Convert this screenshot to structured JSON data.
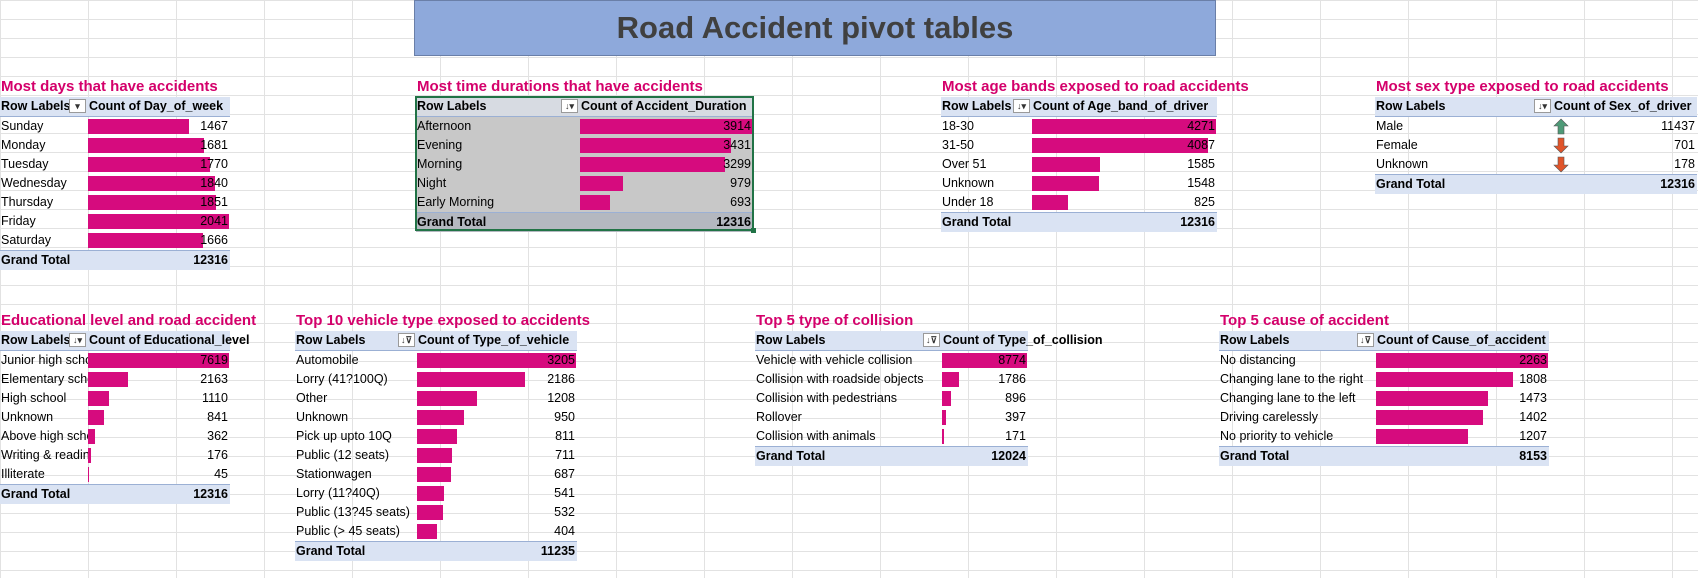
{
  "sheet_title": "Road Accident pivot tables",
  "colors": {
    "bar": "#d60b7e",
    "title": "#d4006b",
    "header": "#dae3f3",
    "banner": "#8ea9db",
    "arrow_up": "#4e9a77",
    "arrow_down": "#e0542a"
  },
  "tables": [
    {
      "id": "days",
      "title": "Most days that have accidents",
      "row_header": "Row Labels",
      "value_header": "Count of Day_of_week",
      "filter_icon": "dropdown-icon",
      "rows": [
        {
          "label": "Sunday",
          "value": 1467
        },
        {
          "label": "Monday",
          "value": 1681
        },
        {
          "label": "Tuesday",
          "value": 1770
        },
        {
          "label": "Wednesday",
          "value": 1840
        },
        {
          "label": "Thursday",
          "value": 1851
        },
        {
          "label": "Friday",
          "value": 2041
        },
        {
          "label": "Saturday",
          "value": 1666
        }
      ],
      "total_label": "Grand Total",
      "total": 12316
    },
    {
      "id": "duration",
      "title": "Most time durations that have accidents",
      "row_header": "Row Labels",
      "value_header": "Count of Accident_Duration",
      "filter_icon": "sort-desc-icon",
      "rows": [
        {
          "label": "Afternoon",
          "value": 3914
        },
        {
          "label": "Evening",
          "value": 3431
        },
        {
          "label": "Morning",
          "value": 3299
        },
        {
          "label": "Night",
          "value": 979
        },
        {
          "label": "Early Morning",
          "value": 693
        }
      ],
      "total_label": "Grand Total",
      "total": 12316
    },
    {
      "id": "age",
      "title": "Most  age bands exposed to road accidents",
      "row_header": "Row Labels",
      "value_header": "Count of Age_band_of_driver",
      "filter_icon": "sort-desc-icon",
      "rows": [
        {
          "label": "18-30",
          "value": 4271
        },
        {
          "label": "31-50",
          "value": 4087
        },
        {
          "label": "Over 51",
          "value": 1585
        },
        {
          "label": "Unknown",
          "value": 1548
        },
        {
          "label": "Under 18",
          "value": 825
        }
      ],
      "total_label": "Grand Total",
      "total": 12316
    },
    {
      "id": "sex",
      "title": "Most  sex type exposed to road accidents",
      "row_header": "Row Labels",
      "value_header": "Count of Sex_of_driver",
      "filter_icon": "sort-desc-icon",
      "rows": [
        {
          "label": "Male",
          "value": 11437,
          "icon": "arrow-up-icon"
        },
        {
          "label": "Female",
          "value": 701,
          "icon": "arrow-down-icon"
        },
        {
          "label": "Unknown",
          "value": 178,
          "icon": "arrow-down-icon"
        }
      ],
      "total_label": "Grand Total",
      "total": 12316
    },
    {
      "id": "education",
      "title": "Educational level and road accident",
      "row_header": "Row Labels",
      "value_header": "Count of Educational_level",
      "filter_icon": "sort-desc-icon",
      "rows": [
        {
          "label": "Junior high school",
          "value": 7619
        },
        {
          "label": "Elementary school",
          "value": 2163
        },
        {
          "label": "High school",
          "value": 1110
        },
        {
          "label": "Unknown",
          "value": 841
        },
        {
          "label": "Above high school",
          "value": 362
        },
        {
          "label": "Writing & reading",
          "value": 176
        },
        {
          "label": "Illiterate",
          "value": 45
        }
      ],
      "total_label": "Grand Total",
      "total": 12316
    },
    {
      "id": "vehicle",
      "title": "Top 10 vehicle type exposed to accidents",
      "row_header": "Row Labels",
      "value_header": "Count of Type_of_vehicle",
      "filter_icon": "sort-filter-icon",
      "rows": [
        {
          "label": "Automobile",
          "value": 3205
        },
        {
          "label": "Lorry (41?100Q)",
          "value": 2186
        },
        {
          "label": "Other",
          "value": 1208
        },
        {
          "label": "Unknown",
          "value": 950
        },
        {
          "label": "Pick up upto 10Q",
          "value": 811
        },
        {
          "label": "Public (12 seats)",
          "value": 711
        },
        {
          "label": "Stationwagen",
          "value": 687
        },
        {
          "label": "Lorry (11?40Q)",
          "value": 541
        },
        {
          "label": "Public (13?45 seats)",
          "value": 532
        },
        {
          "label": "Public (> 45 seats)",
          "value": 404
        }
      ],
      "total_label": "Grand Total",
      "total": 11235
    },
    {
      "id": "collision",
      "title": "Top 5 type of collision",
      "row_header": "Row Labels",
      "value_header": "Count of Type_of_collision",
      "filter_icon": "sort-filter-icon",
      "rows": [
        {
          "label": "Vehicle with vehicle collision",
          "value": 8774
        },
        {
          "label": "Collision with roadside objects",
          "value": 1786
        },
        {
          "label": "Collision with pedestrians",
          "value": 896
        },
        {
          "label": "Rollover",
          "value": 397
        },
        {
          "label": "Collision with animals",
          "value": 171
        }
      ],
      "total_label": "Grand Total",
      "total": 12024
    },
    {
      "id": "cause",
      "title": "Top 5 cause of accident",
      "row_header": "Row Labels",
      "value_header": "Count of Cause_of_accident",
      "filter_icon": "sort-filter-icon",
      "rows": [
        {
          "label": "No distancing",
          "value": 2263
        },
        {
          "label": "Changing lane to the right",
          "value": 1808
        },
        {
          "label": "Changing lane to the left",
          "value": 1473
        },
        {
          "label": "Driving carelessly",
          "value": 1402
        },
        {
          "label": "No priority to vehicle",
          "value": 1207
        }
      ],
      "total_label": "Grand Total",
      "total": 8153
    }
  ]
}
